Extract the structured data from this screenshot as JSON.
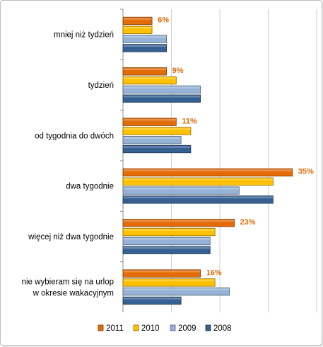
{
  "chart_data": {
    "type": "bar",
    "orientation": "horizontal",
    "categories": [
      [
        "mniej niż tydzień"
      ],
      [
        "tydzień"
      ],
      [
        "od tygodnia do dwóch"
      ],
      [
        "dwa tygodnie"
      ],
      [
        "więcej niż dwa tygodnie"
      ],
      [
        "nie wybieram się na urlop",
        "w okresie wakacyjnym"
      ]
    ],
    "series": [
      {
        "name": "2011",
        "color": "#E36C09",
        "values": [
          6,
          9,
          11,
          35,
          23,
          16
        ]
      },
      {
        "name": "2010",
        "color": "#FFC000",
        "values": [
          6,
          11,
          14,
          31,
          19,
          19
        ]
      },
      {
        "name": "2009",
        "color": "#95B3D7",
        "values": [
          9,
          16,
          12,
          24,
          18,
          22
        ]
      },
      {
        "name": "2008",
        "color": "#376092",
        "values": [
          9,
          16,
          14,
          31,
          18,
          12
        ]
      }
    ],
    "data_labels": [
      "6%",
      "9%",
      "11%",
      "35%",
      "23%",
      "16%"
    ],
    "data_label_color": "#E36C09",
    "xlim": [
      0,
      40
    ],
    "x_gridlines": [
      10,
      20,
      30,
      40
    ],
    "grid": true,
    "legend_position": "bottom"
  }
}
